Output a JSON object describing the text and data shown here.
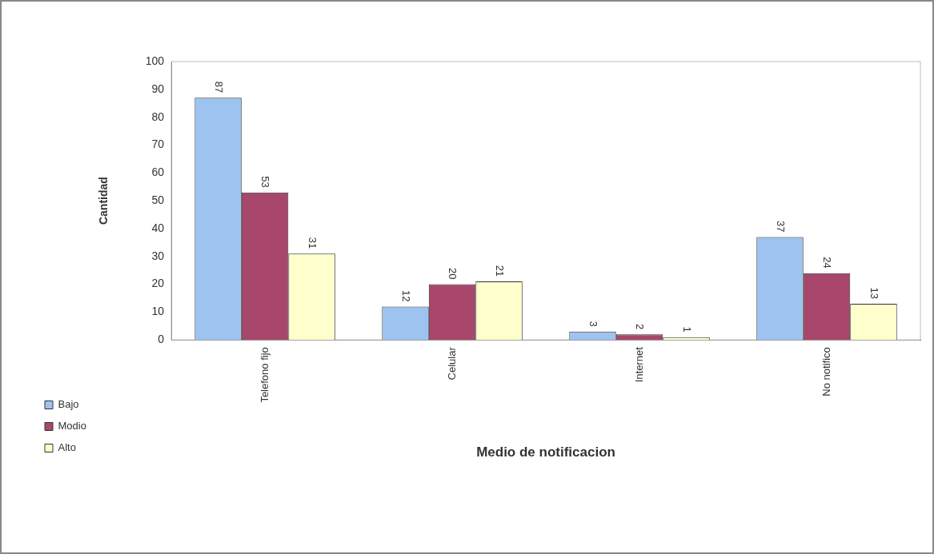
{
  "chart_data": {
    "type": "bar",
    "xlabel": "Medio de notificacion",
    "ylabel": "Cantidad",
    "categories": [
      "Telefono fijo",
      "Celular",
      "Internet",
      "No notifico"
    ],
    "series": [
      {
        "name": "Bajo",
        "color": "#9dc3f0",
        "values": [
          87,
          12,
          3,
          37
        ]
      },
      {
        "name": "Modio",
        "color": "#a8476b",
        "values": [
          53,
          20,
          2,
          24
        ]
      },
      {
        "name": "Alto",
        "color": "#ffffcc",
        "values": [
          31,
          21,
          1,
          13
        ]
      }
    ],
    "ylim": [
      0,
      100
    ],
    "yticks": [
      0,
      10,
      20,
      30,
      40,
      50,
      60,
      70,
      80,
      90,
      100
    ],
    "grid": false,
    "legend": "bottom left",
    "data_labels": true
  }
}
